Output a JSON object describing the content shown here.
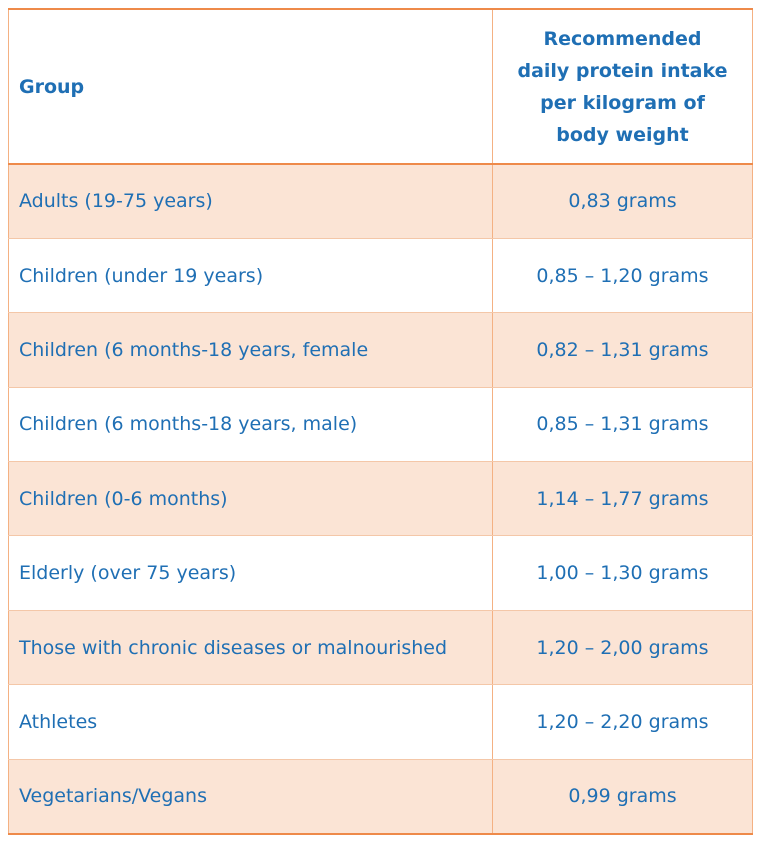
{
  "table": {
    "headers": {
      "group": "Group",
      "intake": "Recommended daily protein intake per kilogram of body weight"
    },
    "rows": [
      {
        "group": "Adults (19-75 years)",
        "intake": "0,83 grams"
      },
      {
        "group": "Children (under 19 years)",
        "intake": "0,85 – 1,20 grams"
      },
      {
        "group": "Children (6 months-18 years, female",
        "intake": "0,82 – 1,31 grams"
      },
      {
        "group": "Children (6 months-18 years, male)",
        "intake": "0,85 – 1,31 grams"
      },
      {
        "group": "Children (0-6 months)",
        "intake": "1,14 – 1,77 grams"
      },
      {
        "group": "Elderly (over 75 years)",
        "intake": "1,00 – 1,30 grams"
      },
      {
        "group": "Those with chronic diseases or malnourished",
        "intake": "1,20 – 2,00 grams"
      },
      {
        "group": "Athletes",
        "intake": "1,20 – 2,20 grams"
      },
      {
        "group": "Vegetarians/Vegans",
        "intake": "0,99 grams"
      }
    ]
  },
  "colors": {
    "text": "#1f6fb4",
    "band": "#fbe4d5",
    "rule": "#ee8a4a"
  }
}
